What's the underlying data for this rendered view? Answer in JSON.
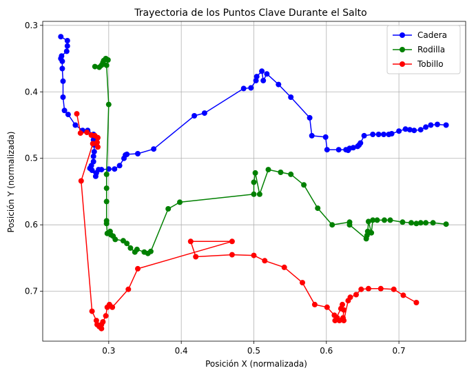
{
  "chart_data": {
    "type": "line",
    "title": "Trayectoria de los Puntos Clave Durante el Salto",
    "xlabel": "Posición X (normalizada)",
    "ylabel": "Posición Y (normalizada)",
    "xlim": [
      0.209,
      0.792
    ],
    "ylim": [
      0.294,
      0.775
    ],
    "y_inverted": true,
    "grid": true,
    "legend_position": "top-right",
    "x_ticks": [
      0.3,
      0.4,
      0.5,
      0.6,
      0.7
    ],
    "x_tick_labels": [
      "0.3",
      "0.4",
      "0.5",
      "0.6",
      "0.7"
    ],
    "y_ticks": [
      0.3,
      0.4,
      0.5,
      0.6,
      0.7
    ],
    "y_tick_labels": [
      "0.3",
      "0.4",
      "0.5",
      "0.6",
      "0.7"
    ],
    "series": [
      {
        "name": "Cadera",
        "color": "#0000ff",
        "points": [
          [
            0.234,
            0.317
          ],
          [
            0.243,
            0.323
          ],
          [
            0.243,
            0.331
          ],
          [
            0.242,
            0.339
          ],
          [
            0.235,
            0.346
          ],
          [
            0.234,
            0.35
          ],
          [
            0.236,
            0.354
          ],
          [
            0.236,
            0.365
          ],
          [
            0.237,
            0.384
          ],
          [
            0.237,
            0.408
          ],
          [
            0.239,
            0.428
          ],
          [
            0.244,
            0.434
          ],
          [
            0.254,
            0.45
          ],
          [
            0.264,
            0.458
          ],
          [
            0.271,
            0.458
          ],
          [
            0.279,
            0.464
          ],
          [
            0.279,
            0.472
          ],
          [
            0.28,
            0.48
          ],
          [
            0.28,
            0.49
          ],
          [
            0.279,
            0.497
          ],
          [
            0.279,
            0.505
          ],
          [
            0.276,
            0.511
          ],
          [
            0.274,
            0.515
          ],
          [
            0.277,
            0.518
          ],
          [
            0.282,
            0.527
          ],
          [
            0.283,
            0.522
          ],
          [
            0.286,
            0.517
          ],
          [
            0.29,
            0.517
          ],
          [
            0.3,
            0.516
          ],
          [
            0.308,
            0.516
          ],
          [
            0.315,
            0.511
          ],
          [
            0.321,
            0.5
          ],
          [
            0.323,
            0.495
          ],
          [
            0.325,
            0.494
          ],
          [
            0.34,
            0.493
          ],
          [
            0.362,
            0.486
          ],
          [
            0.418,
            0.436
          ],
          [
            0.432,
            0.432
          ],
          [
            0.486,
            0.395
          ],
          [
            0.496,
            0.394
          ],
          [
            0.503,
            0.383
          ],
          [
            0.504,
            0.377
          ],
          [
            0.511,
            0.369
          ],
          [
            0.513,
            0.383
          ],
          [
            0.518,
            0.373
          ],
          [
            0.534,
            0.389
          ],
          [
            0.551,
            0.408
          ],
          [
            0.577,
            0.439
          ],
          [
            0.58,
            0.466
          ],
          [
            0.599,
            0.468
          ],
          [
            0.601,
            0.487
          ],
          [
            0.617,
            0.487
          ],
          [
            0.627,
            0.487
          ],
          [
            0.63,
            0.488
          ],
          [
            0.632,
            0.485
          ],
          [
            0.637,
            0.484
          ],
          [
            0.643,
            0.482
          ],
          [
            0.645,
            0.48
          ],
          [
            0.647,
            0.477
          ],
          [
            0.652,
            0.466
          ],
          [
            0.664,
            0.464
          ],
          [
            0.672,
            0.464
          ],
          [
            0.679,
            0.464
          ],
          [
            0.686,
            0.464
          ],
          [
            0.69,
            0.463
          ],
          [
            0.7,
            0.459
          ],
          [
            0.709,
            0.456
          ],
          [
            0.715,
            0.457
          ],
          [
            0.721,
            0.458
          ],
          [
            0.73,
            0.457
          ],
          [
            0.737,
            0.453
          ],
          [
            0.744,
            0.45
          ],
          [
            0.753,
            0.449
          ],
          [
            0.765,
            0.45
          ]
        ]
      },
      {
        "name": "Rodilla",
        "color": "#008000",
        "points": [
          [
            0.281,
            0.362
          ],
          [
            0.287,
            0.363
          ],
          [
            0.29,
            0.36
          ],
          [
            0.292,
            0.356
          ],
          [
            0.293,
            0.353
          ],
          [
            0.296,
            0.35
          ],
          [
            0.299,
            0.352
          ],
          [
            0.297,
            0.36
          ],
          [
            0.3,
            0.419
          ],
          [
            0.297,
            0.524
          ],
          [
            0.297,
            0.545
          ],
          [
            0.297,
            0.565
          ],
          [
            0.297,
            0.594
          ],
          [
            0.297,
            0.598
          ],
          [
            0.298,
            0.613
          ],
          [
            0.302,
            0.61
          ],
          [
            0.303,
            0.615
          ],
          [
            0.306,
            0.617
          ],
          [
            0.309,
            0.622
          ],
          [
            0.32,
            0.624
          ],
          [
            0.325,
            0.628
          ],
          [
            0.33,
            0.635
          ],
          [
            0.336,
            0.641
          ],
          [
            0.339,
            0.637
          ],
          [
            0.349,
            0.641
          ],
          [
            0.354,
            0.643
          ],
          [
            0.358,
            0.64
          ],
          [
            0.382,
            0.576
          ],
          [
            0.398,
            0.566
          ],
          [
            0.5,
            0.554
          ],
          [
            0.5,
            0.536
          ],
          [
            0.502,
            0.522
          ],
          [
            0.508,
            0.554
          ],
          [
            0.52,
            0.517
          ],
          [
            0.537,
            0.521
          ],
          [
            0.551,
            0.524
          ],
          [
            0.569,
            0.54
          ],
          [
            0.588,
            0.575
          ],
          [
            0.608,
            0.6
          ],
          [
            0.632,
            0.596
          ],
          [
            0.632,
            0.6
          ],
          [
            0.655,
            0.621
          ],
          [
            0.656,
            0.616
          ],
          [
            0.657,
            0.61
          ],
          [
            0.658,
            0.595
          ],
          [
            0.662,
            0.612
          ],
          [
            0.664,
            0.593
          ],
          [
            0.67,
            0.593
          ],
          [
            0.68,
            0.593
          ],
          [
            0.688,
            0.593
          ],
          [
            0.705,
            0.596
          ],
          [
            0.717,
            0.597
          ],
          [
            0.724,
            0.598
          ],
          [
            0.73,
            0.597
          ],
          [
            0.737,
            0.597
          ],
          [
            0.747,
            0.597
          ],
          [
            0.765,
            0.599
          ]
        ]
      },
      {
        "name": "Tobillo",
        "color": "#ff0000",
        "points": [
          [
            0.256,
            0.433
          ],
          [
            0.261,
            0.462
          ],
          [
            0.27,
            0.461
          ],
          [
            0.276,
            0.465
          ],
          [
            0.281,
            0.466
          ],
          [
            0.285,
            0.469
          ],
          [
            0.284,
            0.476
          ],
          [
            0.285,
            0.483
          ],
          [
            0.278,
            0.478
          ],
          [
            0.262,
            0.534
          ],
          [
            0.277,
            0.73
          ],
          [
            0.283,
            0.744
          ],
          [
            0.284,
            0.75
          ],
          [
            0.287,
            0.753
          ],
          [
            0.29,
            0.756
          ],
          [
            0.29,
            0.75
          ],
          [
            0.292,
            0.746
          ],
          [
            0.296,
            0.737
          ],
          [
            0.298,
            0.724
          ],
          [
            0.301,
            0.72
          ],
          [
            0.305,
            0.724
          ],
          [
            0.327,
            0.697
          ],
          [
            0.34,
            0.666
          ],
          [
            0.47,
            0.625
          ],
          [
            0.413,
            0.625
          ],
          [
            0.42,
            0.648
          ],
          [
            0.47,
            0.645
          ],
          [
            0.5,
            0.646
          ],
          [
            0.515,
            0.654
          ],
          [
            0.542,
            0.664
          ],
          [
            0.567,
            0.687
          ],
          [
            0.584,
            0.72
          ],
          [
            0.601,
            0.724
          ],
          [
            0.611,
            0.736
          ],
          [
            0.615,
            0.74
          ],
          [
            0.618,
            0.744
          ],
          [
            0.623,
            0.74
          ],
          [
            0.624,
            0.728
          ],
          [
            0.622,
            0.72
          ],
          [
            0.62,
            0.726
          ],
          [
            0.612,
            0.744
          ],
          [
            0.624,
            0.744
          ],
          [
            0.63,
            0.714
          ],
          [
            0.633,
            0.709
          ],
          [
            0.641,
            0.705
          ],
          [
            0.648,
            0.697
          ],
          [
            0.658,
            0.696
          ],
          [
            0.675,
            0.696
          ],
          [
            0.693,
            0.697
          ],
          [
            0.706,
            0.706
          ],
          [
            0.724,
            0.717
          ]
        ]
      }
    ]
  }
}
